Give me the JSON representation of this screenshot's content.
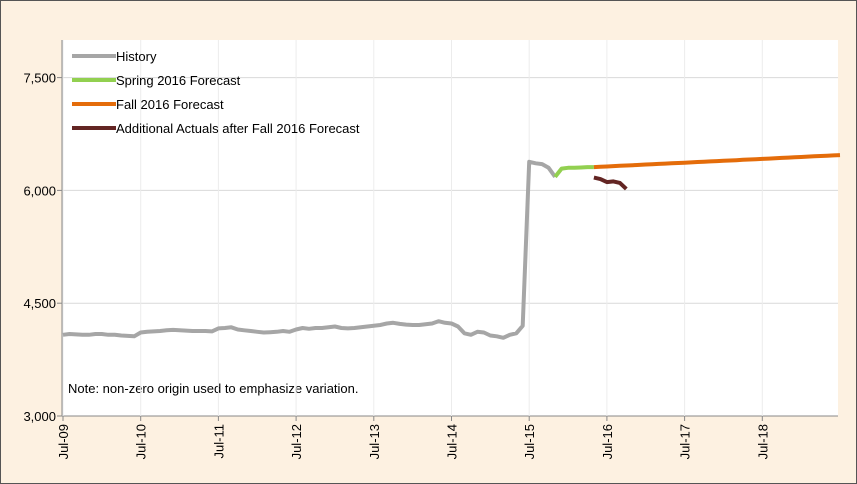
{
  "chart_data": {
    "type": "line",
    "categories": [
      "Jul-09",
      null,
      null,
      null,
      null,
      null,
      null,
      null,
      null,
      null,
      null,
      null,
      "Jul-10",
      null,
      null,
      null,
      null,
      null,
      null,
      null,
      null,
      null,
      null,
      null,
      "Jul-11",
      null,
      null,
      null,
      null,
      null,
      null,
      null,
      null,
      null,
      null,
      null,
      "Jul-12",
      null,
      null,
      null,
      null,
      null,
      null,
      null,
      null,
      null,
      null,
      null,
      "Jul-13",
      null,
      null,
      null,
      null,
      null,
      null,
      null,
      null,
      null,
      null,
      null,
      "Jul-14",
      null,
      null,
      null,
      null,
      null,
      null,
      null,
      null,
      null,
      null,
      null,
      "Jul-15",
      null,
      null,
      null,
      null,
      null,
      null,
      null,
      null,
      null,
      null,
      null,
      "Jul-16",
      null,
      null,
      null,
      null,
      null,
      null,
      null,
      null,
      null,
      null,
      null,
      "Jul-17",
      null,
      null,
      null,
      null,
      null,
      null,
      null,
      null,
      null,
      null,
      null,
      "Jul-18",
      null,
      null,
      null,
      null,
      null,
      null,
      null,
      null,
      null,
      null,
      null,
      null
    ],
    "series": [
      {
        "name": "History",
        "color": "#a6a6a6",
        "values": [
          4080,
          4090,
          4085,
          4080,
          4080,
          4090,
          4090,
          4080,
          4080,
          4070,
          4065,
          4060,
          4110,
          4120,
          4125,
          4130,
          4140,
          4145,
          4140,
          4135,
          4130,
          4130,
          4130,
          4125,
          4165,
          4170,
          4180,
          4150,
          4140,
          4130,
          4120,
          4110,
          4115,
          4120,
          4130,
          4120,
          4150,
          4170,
          4160,
          4170,
          4170,
          4180,
          4190,
          4170,
          4165,
          4170,
          4180,
          4190,
          4200,
          4210,
          4230,
          4240,
          4225,
          4215,
          4210,
          4210,
          4220,
          4230,
          4260,
          4240,
          4230,
          4190,
          4100,
          4080,
          4120,
          4110,
          4070,
          4060,
          4040,
          4080,
          4100,
          4200,
          6380,
          6360,
          6350,
          6300,
          6180,
          null,
          null,
          null,
          null,
          null,
          null,
          null,
          null,
          null,
          null,
          null,
          null,
          null,
          null,
          null,
          null,
          null,
          null,
          null,
          null,
          null,
          null,
          null,
          null,
          null,
          null,
          null,
          null,
          null,
          null,
          null,
          null,
          null,
          null,
          null,
          null,
          null,
          null,
          null,
          null,
          null,
          null,
          null,
          null
        ]
      },
      {
        "name": "Spring 2016 Forecast",
        "color": "#92d050",
        "values": [
          null,
          null,
          null,
          null,
          null,
          null,
          null,
          null,
          null,
          null,
          null,
          null,
          null,
          null,
          null,
          null,
          null,
          null,
          null,
          null,
          null,
          null,
          null,
          null,
          null,
          null,
          null,
          null,
          null,
          null,
          null,
          null,
          null,
          null,
          null,
          null,
          null,
          null,
          null,
          null,
          null,
          null,
          null,
          null,
          null,
          null,
          null,
          null,
          null,
          null,
          null,
          null,
          null,
          null,
          null,
          null,
          null,
          null,
          null,
          null,
          null,
          null,
          null,
          null,
          null,
          null,
          null,
          null,
          null,
          null,
          null,
          null,
          null,
          null,
          null,
          null,
          6180,
          6290,
          6300,
          6300,
          6305,
          6310,
          6310,
          null,
          null,
          null,
          null,
          null,
          null,
          null,
          null,
          null,
          null,
          null,
          null,
          null,
          null,
          null,
          null,
          null,
          null,
          null,
          null,
          null,
          null,
          null,
          null,
          null,
          null,
          null,
          null,
          null,
          null,
          null,
          null,
          null,
          null,
          null,
          null,
          null,
          null
        ]
      },
      {
        "name": "Fall 2016 Forecast",
        "color": "#e46c0a",
        "values": [
          null,
          null,
          null,
          null,
          null,
          null,
          null,
          null,
          null,
          null,
          null,
          null,
          null,
          null,
          null,
          null,
          null,
          null,
          null,
          null,
          null,
          null,
          null,
          null,
          null,
          null,
          null,
          null,
          null,
          null,
          null,
          null,
          null,
          null,
          null,
          null,
          null,
          null,
          null,
          null,
          null,
          null,
          null,
          null,
          null,
          null,
          null,
          null,
          null,
          null,
          null,
          null,
          null,
          null,
          null,
          null,
          null,
          null,
          null,
          null,
          null,
          null,
          null,
          null,
          null,
          null,
          null,
          null,
          null,
          null,
          null,
          null,
          null,
          null,
          null,
          null,
          null,
          null,
          null,
          null,
          null,
          null,
          6310,
          6314,
          6318,
          6323,
          6327,
          6331,
          6335,
          6339,
          6344,
          6348,
          6352,
          6356,
          6360,
          6365,
          6369,
          6373,
          6377,
          6381,
          6386,
          6390,
          6394,
          6398,
          6402,
          6407,
          6411,
          6415,
          6419,
          6423,
          6428,
          6432,
          6436,
          6440,
          6444,
          6449,
          6453,
          6457,
          6461,
          6465,
          6470
        ]
      },
      {
        "name": "Additional Actuals after Fall 2016 Forecast",
        "color": "#632523",
        "values": [
          null,
          null,
          null,
          null,
          null,
          null,
          null,
          null,
          null,
          null,
          null,
          null,
          null,
          null,
          null,
          null,
          null,
          null,
          null,
          null,
          null,
          null,
          null,
          null,
          null,
          null,
          null,
          null,
          null,
          null,
          null,
          null,
          null,
          null,
          null,
          null,
          null,
          null,
          null,
          null,
          null,
          null,
          null,
          null,
          null,
          null,
          null,
          null,
          null,
          null,
          null,
          null,
          null,
          null,
          null,
          null,
          null,
          null,
          null,
          null,
          null,
          null,
          null,
          null,
          null,
          null,
          null,
          null,
          null,
          null,
          null,
          null,
          null,
          null,
          null,
          null,
          null,
          null,
          null,
          null,
          null,
          null,
          6170,
          6150,
          6110,
          6120,
          6100,
          6020,
          null,
          null,
          null,
          null,
          null,
          null,
          null,
          null,
          null,
          null,
          null,
          null,
          null,
          null,
          null,
          null,
          null,
          null,
          null,
          null,
          null,
          null,
          null,
          null,
          null,
          null,
          null,
          null,
          null,
          null,
          null,
          null,
          null
        ]
      }
    ],
    "ylim": [
      3000,
      8000
    ],
    "yticks": [
      {
        "value": 3000,
        "label": "3,000"
      },
      {
        "value": 4500,
        "label": "4,500"
      },
      {
        "value": 6000,
        "label": "6,000"
      },
      {
        "value": 7500,
        "label": "7,500"
      }
    ],
    "grid": true,
    "legend": "top-left",
    "annotation": "Note: non-zero origin used to emphasize variation."
  }
}
